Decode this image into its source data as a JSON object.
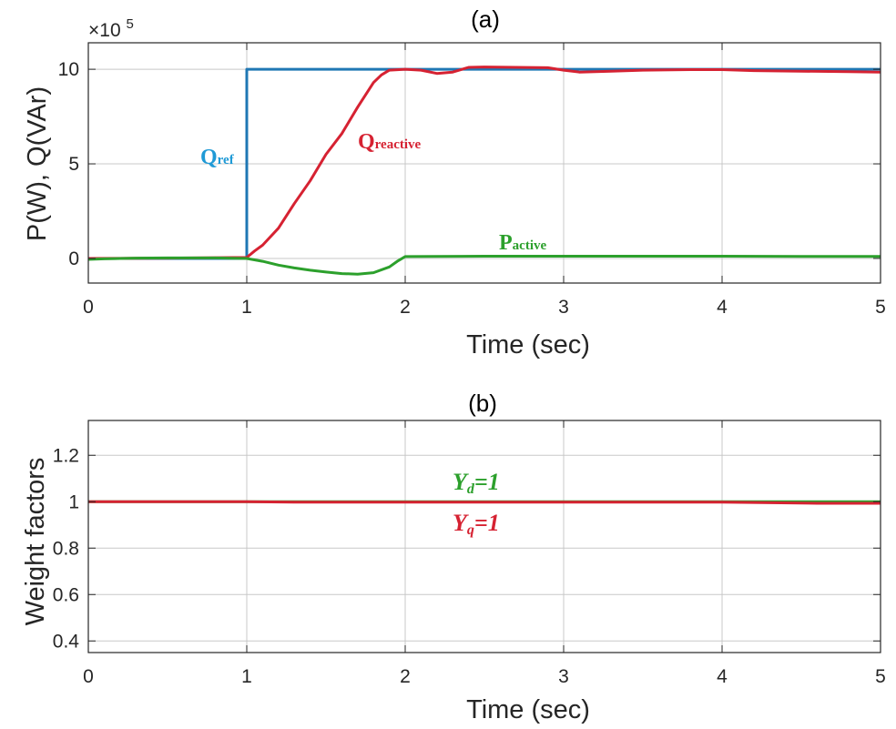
{
  "chart_data": [
    {
      "type": "line",
      "title": "(a)",
      "xlabel": "Time (sec)",
      "ylabel": "P(W), Q(VAr)",
      "y_multiplier": "×10",
      "y_multiplier_exp": "5",
      "xlim": [
        0,
        5
      ],
      "ylim": [
        -1.3,
        11.4
      ],
      "xticks": [
        0,
        1,
        2,
        3,
        4,
        5
      ],
      "xtick_labels": [
        "0",
        "1",
        "2",
        "3",
        "4",
        "5"
      ],
      "yticks": [
        0,
        5,
        10
      ],
      "ytick_labels": [
        "0",
        "5",
        "10"
      ],
      "grid": true,
      "series": [
        {
          "name": "Qref",
          "color": "#1f77b4",
          "x": [
            0,
            1.0,
            1.0,
            5.0
          ],
          "y": [
            0,
            0,
            10.0,
            10.0
          ]
        },
        {
          "name": "Qreactive",
          "color": "#d62232",
          "x": [
            0,
            0.5,
            1.0,
            1.05,
            1.1,
            1.2,
            1.3,
            1.4,
            1.5,
            1.6,
            1.7,
            1.8,
            1.85,
            1.9,
            2.0,
            2.1,
            2.2,
            2.3,
            2.4,
            2.5,
            2.7,
            2.9,
            3.0,
            3.1,
            3.3,
            3.5,
            3.8,
            4.0,
            4.2,
            4.5,
            4.8,
            5.0
          ],
          "y": [
            0.0,
            0.02,
            0.05,
            0.4,
            0.7,
            1.6,
            2.9,
            4.1,
            5.5,
            6.6,
            8.0,
            9.3,
            9.7,
            9.95,
            10.0,
            9.95,
            9.78,
            9.85,
            10.1,
            10.12,
            10.1,
            10.08,
            9.95,
            9.85,
            9.9,
            9.95,
            9.98,
            9.98,
            9.93,
            9.9,
            9.87,
            9.85
          ]
        },
        {
          "name": "Pactive",
          "color": "#2ca02c",
          "x": [
            0,
            0.1,
            0.2,
            0.3,
            0.5,
            0.8,
            1.0,
            1.1,
            1.2,
            1.3,
            1.4,
            1.5,
            1.6,
            1.7,
            1.8,
            1.9,
            1.95,
            2.0,
            2.5,
            3.0,
            3.5,
            4.0,
            4.5,
            5.0
          ],
          "y": [
            -0.05,
            -0.02,
            0.0,
            0.02,
            0.03,
            0.03,
            0.0,
            -0.15,
            -0.35,
            -0.5,
            -0.62,
            -0.72,
            -0.8,
            -0.83,
            -0.75,
            -0.45,
            -0.15,
            0.1,
            0.12,
            0.12,
            0.12,
            0.12,
            0.11,
            0.11
          ]
        }
      ],
      "annotations": [
        {
          "text": "Q",
          "sub": "ref",
          "color": "#1f9ad6"
        },
        {
          "text": "Q",
          "sub": "reactive",
          "color": "#d62232"
        },
        {
          "text": "P",
          "sub": "active",
          "color": "#2ca02c"
        }
      ]
    },
    {
      "type": "line",
      "title": "(b)",
      "xlabel": "Time (sec)",
      "ylabel": "Weight factors",
      "xlim": [
        0,
        5
      ],
      "ylim": [
        0.35,
        1.35
      ],
      "xticks": [
        0,
        1,
        2,
        3,
        4,
        5
      ],
      "xtick_labels": [
        "0",
        "1",
        "2",
        "3",
        "4",
        "5"
      ],
      "yticks": [
        0.4,
        0.6,
        0.8,
        1.0,
        1.2
      ],
      "ytick_labels": [
        "0.4",
        "0.6",
        "0.8",
        "1",
        "1.2"
      ],
      "grid": true,
      "series": [
        {
          "name": "Yd",
          "color": "#2ca02c",
          "x": [
            0,
            1.3,
            2.0,
            3.0,
            4.0,
            4.6,
            5.0
          ],
          "y": [
            1.0,
            1.0,
            1.0,
            1.0,
            1.0,
            1.0,
            1.0
          ]
        },
        {
          "name": "Yq",
          "color": "#d62232",
          "x": [
            0,
            1.0,
            1.3,
            2.0,
            3.0,
            4.0,
            4.6,
            5.0
          ],
          "y": [
            1.0,
            1.0,
            0.998,
            0.998,
            0.998,
            0.998,
            0.993,
            0.993
          ]
        }
      ],
      "annotations": [
        {
          "text": "Y",
          "sub": "d",
          "suffix": "=1",
          "color": "#2ca02c"
        },
        {
          "text": "Y",
          "sub": "q",
          "suffix": "=1",
          "color": "#d62232"
        }
      ]
    }
  ]
}
